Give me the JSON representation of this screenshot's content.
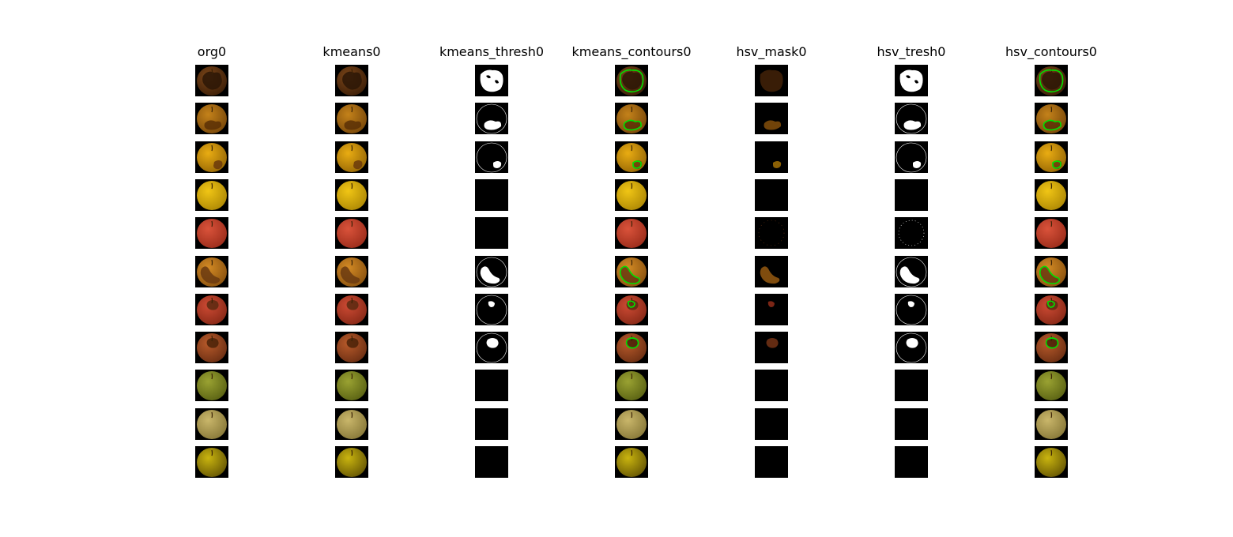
{
  "columns": [
    "org0",
    "kmeans0",
    "kmeans_thresh0",
    "kmeans_contours0",
    "hsv_mask0",
    "hsv_tresh0",
    "hsv_contours0"
  ],
  "apples": [
    {
      "fill": "#7a4518",
      "shade": "#3f2008",
      "defect": "#2c1606",
      "defect_pos": "blotch",
      "thresh": "full",
      "hsv": "full"
    },
    {
      "fill": "#c4821a",
      "shade": "#7c4a0a",
      "defect": "#5a3006",
      "defect_pos": "lower",
      "thresh": "lower",
      "hsv": "lower"
    },
    {
      "fill": "#e9ac12",
      "shade": "#9a6a06",
      "defect": "#6b3a0c",
      "defect_pos": "bottom-right",
      "thresh": "small",
      "hsv": "small"
    },
    {
      "fill": "#f0c515",
      "shade": "#b08a05",
      "defect": "",
      "defect_pos": "none",
      "thresh": "none",
      "hsv": "none"
    },
    {
      "fill": "#d9523a",
      "shade": "#9e2e1c",
      "defect": "",
      "defect_pos": "none",
      "thresh": "none",
      "hsv": "ring"
    },
    {
      "fill": "#d38a24",
      "shade": "#8d5410",
      "defect": "#6a3a10",
      "defect_pos": "left",
      "thresh": "left",
      "hsv": "left"
    },
    {
      "fill": "#cc4a33",
      "shade": "#8a2a18",
      "defect": "#5a2a10",
      "defect_pos": "top",
      "thresh": "spot",
      "hsv": "spot"
    },
    {
      "fill": "#b85a2a",
      "shade": "#6e3014",
      "defect": "#4a2208",
      "defect_pos": "top",
      "thresh": "top",
      "hsv": "top"
    },
    {
      "fill": "#9aa232",
      "shade": "#5c6414",
      "defect": "",
      "defect_pos": "none",
      "thresh": "none",
      "hsv": "none"
    },
    {
      "fill": "#c9b66a",
      "shade": "#8a7a3a",
      "defect": "",
      "defect_pos": "none",
      "thresh": "none",
      "hsv": "none"
    },
    {
      "fill": "#c9b40f",
      "shade": "#6a5a04",
      "defect": "",
      "defect_pos": "none",
      "thresh": "none",
      "hsv": "none"
    }
  ],
  "colors": {
    "contour": "#00e000",
    "mask_color": "#6b3514",
    "thresh_white": "#ffffff",
    "background": "#000000"
  }
}
